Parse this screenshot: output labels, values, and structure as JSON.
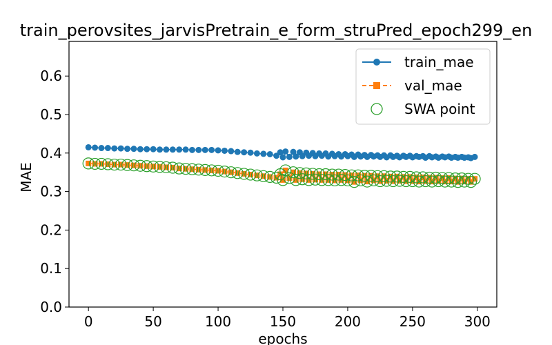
{
  "chart_data": {
    "type": "line",
    "title": "train_perovsites_jarvisPretrain_e_form_struPred_epoch299_en",
    "xlabel": "epochs",
    "ylabel": "MAE",
    "xlim": [
      -15,
      315
    ],
    "ylim": [
      0,
      0.69
    ],
    "xticks": [
      "0",
      "50",
      "100",
      "150",
      "200",
      "250",
      "300"
    ],
    "yticks": [
      "0.0",
      "0.1",
      "0.2",
      "0.3",
      "0.4",
      "0.5",
      "0.6"
    ],
    "legend_position": "top-right",
    "grid": false,
    "series": [
      {
        "name": "train_mae",
        "color": "#1f77b4",
        "marker": "circle",
        "linestyle": "solid",
        "x": [
          0,
          5,
          10,
          15,
          20,
          25,
          30,
          35,
          40,
          45,
          50,
          55,
          60,
          65,
          70,
          75,
          80,
          85,
          90,
          95,
          100,
          105,
          110,
          115,
          120,
          125,
          130,
          135,
          140,
          145,
          148,
          150,
          152,
          155,
          158,
          160,
          163,
          165,
          168,
          170,
          173,
          175,
          178,
          180,
          183,
          185,
          188,
          190,
          193,
          195,
          198,
          200,
          203,
          205,
          208,
          210,
          213,
          215,
          218,
          220,
          223,
          225,
          228,
          230,
          233,
          235,
          238,
          240,
          243,
          245,
          248,
          250,
          253,
          255,
          258,
          260,
          263,
          265,
          268,
          270,
          273,
          275,
          278,
          280,
          283,
          285,
          288,
          290,
          293,
          295,
          298
        ],
        "y": [
          0.415,
          0.414,
          0.413,
          0.413,
          0.412,
          0.412,
          0.411,
          0.411,
          0.41,
          0.41,
          0.41,
          0.409,
          0.409,
          0.409,
          0.409,
          0.409,
          0.408,
          0.408,
          0.408,
          0.408,
          0.407,
          0.406,
          0.405,
          0.403,
          0.402,
          0.401,
          0.399,
          0.398,
          0.397,
          0.393,
          0.402,
          0.389,
          0.404,
          0.39,
          0.403,
          0.391,
          0.402,
          0.392,
          0.401,
          0.393,
          0.4,
          0.392,
          0.399,
          0.393,
          0.399,
          0.391,
          0.398,
          0.392,
          0.397,
          0.391,
          0.397,
          0.392,
          0.396,
          0.39,
          0.396,
          0.391,
          0.395,
          0.39,
          0.395,
          0.391,
          0.394,
          0.39,
          0.394,
          0.389,
          0.394,
          0.39,
          0.393,
          0.389,
          0.393,
          0.39,
          0.393,
          0.389,
          0.392,
          0.39,
          0.392,
          0.388,
          0.392,
          0.389,
          0.391,
          0.388,
          0.391,
          0.389,
          0.391,
          0.388,
          0.39,
          0.388,
          0.39,
          0.388,
          0.389,
          0.387,
          0.39
        ]
      },
      {
        "name": "val_mae",
        "color": "#ff7f0e",
        "marker": "square",
        "linestyle": "dashed",
        "x": [
          0,
          5,
          10,
          15,
          20,
          25,
          30,
          35,
          40,
          45,
          50,
          55,
          60,
          65,
          70,
          75,
          80,
          85,
          90,
          95,
          100,
          105,
          110,
          115,
          120,
          125,
          130,
          135,
          140,
          145,
          148,
          150,
          152,
          155,
          158,
          160,
          163,
          165,
          168,
          170,
          173,
          175,
          178,
          180,
          183,
          185,
          188,
          190,
          193,
          195,
          198,
          200,
          203,
          205,
          208,
          210,
          213,
          215,
          218,
          220,
          223,
          225,
          228,
          230,
          233,
          235,
          238,
          240,
          243,
          245,
          248,
          250,
          253,
          255,
          258,
          260,
          263,
          265,
          268,
          270,
          273,
          275,
          278,
          280,
          283,
          285,
          288,
          290,
          293,
          295,
          298
        ],
        "y": [
          0.373,
          0.372,
          0.372,
          0.371,
          0.37,
          0.37,
          0.369,
          0.368,
          0.367,
          0.366,
          0.365,
          0.364,
          0.363,
          0.362,
          0.36,
          0.359,
          0.358,
          0.357,
          0.356,
          0.355,
          0.354,
          0.352,
          0.35,
          0.348,
          0.346,
          0.344,
          0.342,
          0.34,
          0.338,
          0.336,
          0.345,
          0.33,
          0.355,
          0.335,
          0.35,
          0.33,
          0.348,
          0.332,
          0.347,
          0.33,
          0.346,
          0.331,
          0.345,
          0.33,
          0.345,
          0.33,
          0.344,
          0.329,
          0.344,
          0.33,
          0.343,
          0.329,
          0.342,
          0.325,
          0.342,
          0.329,
          0.341,
          0.326,
          0.341,
          0.329,
          0.34,
          0.327,
          0.34,
          0.328,
          0.339,
          0.327,
          0.339,
          0.328,
          0.338,
          0.327,
          0.338,
          0.327,
          0.337,
          0.326,
          0.337,
          0.327,
          0.336,
          0.326,
          0.336,
          0.327,
          0.335,
          0.326,
          0.335,
          0.326,
          0.334,
          0.325,
          0.334,
          0.326,
          0.333,
          0.325,
          0.333
        ]
      },
      {
        "name": "SWA point",
        "color": "#2ca02c",
        "marker": "open-circle",
        "linestyle": "none",
        "x": [
          0,
          5,
          10,
          15,
          20,
          25,
          30,
          35,
          40,
          45,
          50,
          55,
          60,
          65,
          70,
          75,
          80,
          85,
          90,
          95,
          100,
          105,
          110,
          115,
          120,
          125,
          130,
          135,
          140,
          145,
          148,
          150,
          152,
          155,
          158,
          160,
          163,
          165,
          168,
          170,
          173,
          175,
          178,
          180,
          183,
          185,
          188,
          190,
          193,
          195,
          198,
          200,
          203,
          205,
          208,
          210,
          213,
          215,
          218,
          220,
          223,
          225,
          228,
          230,
          233,
          235,
          238,
          240,
          243,
          245,
          248,
          250,
          253,
          255,
          258,
          260,
          263,
          265,
          268,
          270,
          273,
          275,
          278,
          280,
          283,
          285,
          288,
          290,
          293,
          295,
          298
        ],
        "y": [
          0.373,
          0.372,
          0.372,
          0.371,
          0.37,
          0.37,
          0.369,
          0.368,
          0.367,
          0.366,
          0.365,
          0.364,
          0.363,
          0.362,
          0.36,
          0.359,
          0.358,
          0.357,
          0.356,
          0.355,
          0.354,
          0.352,
          0.35,
          0.348,
          0.346,
          0.344,
          0.342,
          0.34,
          0.338,
          0.336,
          0.345,
          0.33,
          0.355,
          0.335,
          0.35,
          0.33,
          0.348,
          0.332,
          0.347,
          0.33,
          0.346,
          0.331,
          0.345,
          0.33,
          0.345,
          0.33,
          0.344,
          0.329,
          0.344,
          0.33,
          0.343,
          0.329,
          0.342,
          0.325,
          0.342,
          0.329,
          0.341,
          0.326,
          0.341,
          0.329,
          0.34,
          0.327,
          0.34,
          0.328,
          0.339,
          0.327,
          0.339,
          0.328,
          0.338,
          0.327,
          0.338,
          0.327,
          0.337,
          0.326,
          0.337,
          0.327,
          0.336,
          0.326,
          0.336,
          0.327,
          0.335,
          0.326,
          0.335,
          0.326,
          0.334,
          0.325,
          0.334,
          0.326,
          0.333,
          0.325,
          0.333
        ]
      }
    ]
  }
}
